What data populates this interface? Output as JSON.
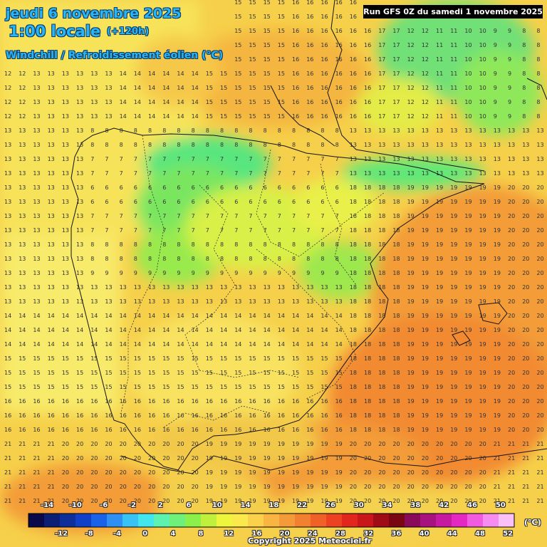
{
  "header": {
    "date": "jeudi 6 novembre 2025",
    "local_time": "1:00 locale",
    "lead": "(+120h)",
    "parameter": "Windchill / Refroidissement éolien (°C)",
    "run": "Run GFS 0Z du samedi 1 novembre 2025"
  },
  "legend": {
    "unit": "(°C)",
    "top_labels": [
      "-14",
      "-10",
      "-6",
      "-2",
      "2",
      "6",
      "10",
      "14",
      "18",
      "22",
      "26",
      "30",
      "34",
      "38",
      "42",
      "46",
      "50"
    ],
    "bottom_labels": [
      "-12",
      "-8",
      "-4",
      "0",
      "4",
      "8",
      "12",
      "16",
      "20",
      "24",
      "28",
      "32",
      "36",
      "40",
      "44",
      "48",
      "52"
    ],
    "colors": [
      "#0a0a4a",
      "#0c1f74",
      "#0e2f9a",
      "#1040c8",
      "#1a63e8",
      "#2f8ff2",
      "#39c2f5",
      "#43e6ec",
      "#5cf2b0",
      "#6ef07a",
      "#8cf04a",
      "#bef03c",
      "#eef53c",
      "#fbe84a",
      "#fbd04a",
      "#f9b441",
      "#f59a38",
      "#f37f30",
      "#f06128",
      "#ec4222",
      "#e2261d",
      "#c8161a",
      "#a00c16",
      "#7a0614",
      "#8a0a5a",
      "#a8127e",
      "#c61aa0",
      "#e428c2",
      "#f25ae0",
      "#f78cf0",
      "#fbc0f8"
    ]
  },
  "copyright": "Copyright 2025 Meteociel.fr"
}
